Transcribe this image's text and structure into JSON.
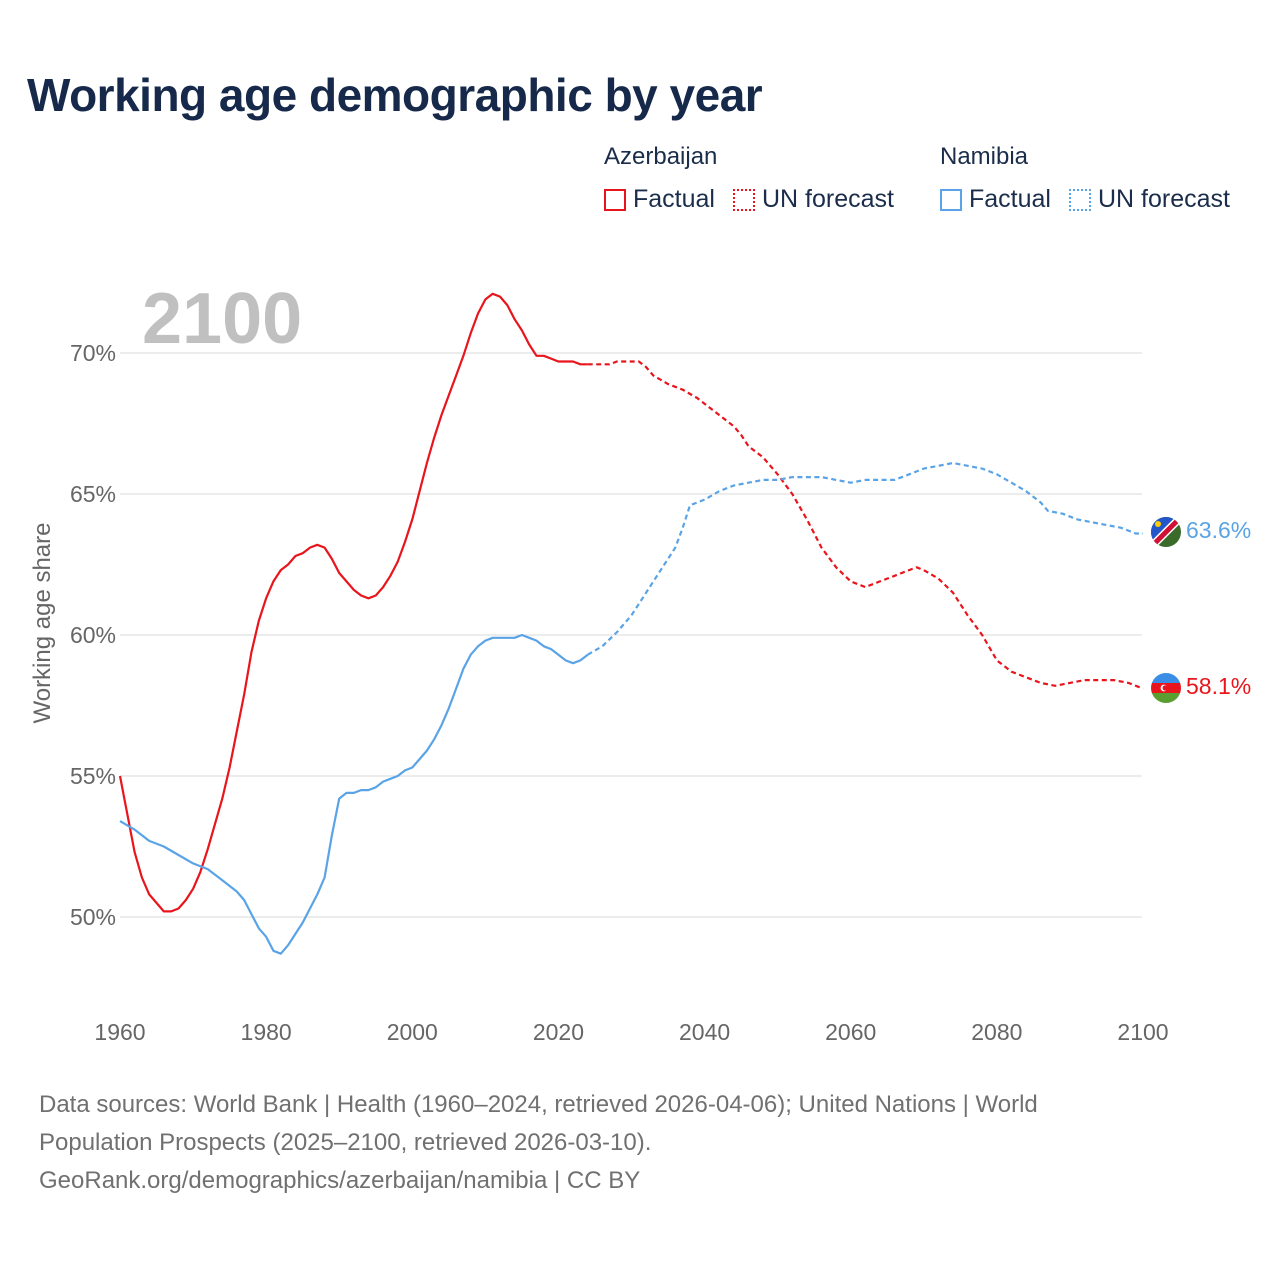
{
  "title": "Working age demographic by year",
  "legend": {
    "groups": [
      {
        "name": "Azerbaijan",
        "color": "#e8151c",
        "items": [
          {
            "label": "Factual",
            "style": "solid"
          },
          {
            "label": "UN forecast",
            "style": "dotted"
          }
        ]
      },
      {
        "name": "Namibia",
        "color": "#5aa3e6",
        "items": [
          {
            "label": "Factual",
            "style": "solid"
          },
          {
            "label": "UN forecast",
            "style": "dotted"
          }
        ]
      }
    ]
  },
  "sources": {
    "line1": "Data sources: World Bank | Health (1960–2024, retrieved 2026-04-06); United Nations | World",
    "line2": "Population Prospects (2025–2100, retrieved 2026-03-10).",
    "line3": "GeoRank.org/demographics/azerbaijan/namibia | CC BY"
  },
  "chart_data": {
    "type": "line",
    "title": "Working age demographic by year",
    "ylabel": "Working age share",
    "xlabel": "",
    "current_year_label": "2100",
    "xlim": [
      1960,
      2100
    ],
    "ylim": [
      47.5,
      72.5
    ],
    "x_ticks": [
      1960,
      1980,
      2000,
      2020,
      2040,
      2060,
      2080,
      2100
    ],
    "y_ticks": [
      50,
      55,
      60,
      65,
      70
    ],
    "y_tick_labels": [
      "50%",
      "55%",
      "60%",
      "65%",
      "70%"
    ],
    "grid": "horizontal",
    "factual_end_year": 2024,
    "series": [
      {
        "name": "Azerbaijan",
        "color": "#e8151c",
        "end_label": "58.1%",
        "points": [
          [
            1960,
            55.0
          ],
          [
            1962,
            52.3
          ],
          [
            1963,
            51.4
          ],
          [
            1964,
            50.8
          ],
          [
            1965,
            50.5
          ],
          [
            1966,
            50.2
          ],
          [
            1967,
            50.2
          ],
          [
            1968,
            50.3
          ],
          [
            1969,
            50.6
          ],
          [
            1970,
            51.0
          ],
          [
            1971,
            51.6
          ],
          [
            1972,
            52.4
          ],
          [
            1973,
            53.3
          ],
          [
            1974,
            54.2
          ],
          [
            1975,
            55.3
          ],
          [
            1976,
            56.6
          ],
          [
            1977,
            57.9
          ],
          [
            1978,
            59.4
          ],
          [
            1979,
            60.5
          ],
          [
            1980,
            61.3
          ],
          [
            1981,
            61.9
          ],
          [
            1982,
            62.3
          ],
          [
            1983,
            62.5
          ],
          [
            1984,
            62.8
          ],
          [
            1985,
            62.9
          ],
          [
            1986,
            63.1
          ],
          [
            1987,
            63.2
          ],
          [
            1988,
            63.1
          ],
          [
            1989,
            62.7
          ],
          [
            1990,
            62.2
          ],
          [
            1991,
            61.9
          ],
          [
            1992,
            61.6
          ],
          [
            1993,
            61.4
          ],
          [
            1994,
            61.3
          ],
          [
            1995,
            61.4
          ],
          [
            1996,
            61.7
          ],
          [
            1997,
            62.1
          ],
          [
            1998,
            62.6
          ],
          [
            1999,
            63.3
          ],
          [
            2000,
            64.1
          ],
          [
            2001,
            65.1
          ],
          [
            2002,
            66.1
          ],
          [
            2003,
            67.0
          ],
          [
            2004,
            67.8
          ],
          [
            2005,
            68.5
          ],
          [
            2006,
            69.2
          ],
          [
            2007,
            69.9
          ],
          [
            2008,
            70.7
          ],
          [
            2009,
            71.4
          ],
          [
            2010,
            71.9
          ],
          [
            2011,
            72.1
          ],
          [
            2012,
            72.0
          ],
          [
            2013,
            71.7
          ],
          [
            2014,
            71.2
          ],
          [
            2015,
            70.8
          ],
          [
            2016,
            70.3
          ],
          [
            2017,
            69.9
          ],
          [
            2018,
            69.9
          ],
          [
            2019,
            69.8
          ],
          [
            2020,
            69.7
          ],
          [
            2021,
            69.7
          ],
          [
            2022,
            69.7
          ],
          [
            2023,
            69.6
          ],
          [
            2024,
            69.6
          ],
          [
            2026,
            69.6
          ],
          [
            2027,
            69.6
          ],
          [
            2028,
            69.7
          ],
          [
            2030,
            69.7
          ],
          [
            2031,
            69.7
          ],
          [
            2032,
            69.5
          ],
          [
            2033,
            69.2
          ],
          [
            2035,
            68.9
          ],
          [
            2037,
            68.7
          ],
          [
            2039,
            68.4
          ],
          [
            2040,
            68.2
          ],
          [
            2042,
            67.8
          ],
          [
            2044,
            67.4
          ],
          [
            2045,
            67.1
          ],
          [
            2046,
            66.7
          ],
          [
            2048,
            66.3
          ],
          [
            2050,
            65.7
          ],
          [
            2052,
            65.0
          ],
          [
            2054,
            64.1
          ],
          [
            2056,
            63.1
          ],
          [
            2058,
            62.4
          ],
          [
            2060,
            61.9
          ],
          [
            2062,
            61.7
          ],
          [
            2064,
            61.9
          ],
          [
            2066,
            62.1
          ],
          [
            2068,
            62.3
          ],
          [
            2069,
            62.4
          ],
          [
            2070,
            62.3
          ],
          [
            2072,
            62.0
          ],
          [
            2074,
            61.5
          ],
          [
            2076,
            60.7
          ],
          [
            2078,
            60.0
          ],
          [
            2080,
            59.1
          ],
          [
            2082,
            58.7
          ],
          [
            2084,
            58.5
          ],
          [
            2086,
            58.3
          ],
          [
            2088,
            58.2
          ],
          [
            2090,
            58.3
          ],
          [
            2092,
            58.4
          ],
          [
            2094,
            58.4
          ],
          [
            2096,
            58.4
          ],
          [
            2098,
            58.3
          ],
          [
            2100,
            58.1
          ]
        ]
      },
      {
        "name": "Namibia",
        "color": "#5aa3e6",
        "end_label": "63.6%",
        "points": [
          [
            1960,
            53.4
          ],
          [
            1962,
            53.1
          ],
          [
            1964,
            52.7
          ],
          [
            1966,
            52.5
          ],
          [
            1968,
            52.2
          ],
          [
            1970,
            51.9
          ],
          [
            1972,
            51.7
          ],
          [
            1974,
            51.3
          ],
          [
            1976,
            50.9
          ],
          [
            1977,
            50.6
          ],
          [
            1978,
            50.1
          ],
          [
            1979,
            49.6
          ],
          [
            1980,
            49.3
          ],
          [
            1981,
            48.8
          ],
          [
            1982,
            48.7
          ],
          [
            1983,
            49.0
          ],
          [
            1984,
            49.4
          ],
          [
            1985,
            49.8
          ],
          [
            1986,
            50.3
          ],
          [
            1987,
            50.8
          ],
          [
            1988,
            51.4
          ],
          [
            1989,
            52.9
          ],
          [
            1990,
            54.2
          ],
          [
            1991,
            54.4
          ],
          [
            1992,
            54.4
          ],
          [
            1993,
            54.5
          ],
          [
            1994,
            54.5
          ],
          [
            1995,
            54.6
          ],
          [
            1996,
            54.8
          ],
          [
            1997,
            54.9
          ],
          [
            1998,
            55.0
          ],
          [
            1999,
            55.2
          ],
          [
            2000,
            55.3
          ],
          [
            2001,
            55.6
          ],
          [
            2002,
            55.9
          ],
          [
            2003,
            56.3
          ],
          [
            2004,
            56.8
          ],
          [
            2005,
            57.4
          ],
          [
            2006,
            58.1
          ],
          [
            2007,
            58.8
          ],
          [
            2008,
            59.3
          ],
          [
            2009,
            59.6
          ],
          [
            2010,
            59.8
          ],
          [
            2011,
            59.9
          ],
          [
            2012,
            59.9
          ],
          [
            2013,
            59.9
          ],
          [
            2014,
            59.9
          ],
          [
            2015,
            60.0
          ],
          [
            2016,
            59.9
          ],
          [
            2017,
            59.8
          ],
          [
            2018,
            59.6
          ],
          [
            2019,
            59.5
          ],
          [
            2020,
            59.3
          ],
          [
            2021,
            59.1
          ],
          [
            2022,
            59.0
          ],
          [
            2023,
            59.1
          ],
          [
            2024,
            59.3
          ],
          [
            2026,
            59.6
          ],
          [
            2028,
            60.1
          ],
          [
            2030,
            60.7
          ],
          [
            2032,
            61.5
          ],
          [
            2034,
            62.3
          ],
          [
            2036,
            63.1
          ],
          [
            2037,
            63.8
          ],
          [
            2038,
            64.6
          ],
          [
            2040,
            64.8
          ],
          [
            2042,
            65.1
          ],
          [
            2044,
            65.3
          ],
          [
            2046,
            65.4
          ],
          [
            2048,
            65.5
          ],
          [
            2050,
            65.5
          ],
          [
            2052,
            65.6
          ],
          [
            2054,
            65.6
          ],
          [
            2056,
            65.6
          ],
          [
            2058,
            65.5
          ],
          [
            2060,
            65.4
          ],
          [
            2062,
            65.5
          ],
          [
            2064,
            65.5
          ],
          [
            2066,
            65.5
          ],
          [
            2068,
            65.7
          ],
          [
            2070,
            65.9
          ],
          [
            2072,
            66.0
          ],
          [
            2074,
            66.1
          ],
          [
            2076,
            66.0
          ],
          [
            2078,
            65.9
          ],
          [
            2080,
            65.7
          ],
          [
            2082,
            65.4
          ],
          [
            2084,
            65.1
          ],
          [
            2086,
            64.7
          ],
          [
            2087,
            64.4
          ],
          [
            2089,
            64.3
          ],
          [
            2091,
            64.1
          ],
          [
            2093,
            64.0
          ],
          [
            2095,
            63.9
          ],
          [
            2097,
            63.8
          ],
          [
            2099,
            63.6
          ],
          [
            2100,
            63.6
          ]
        ]
      }
    ]
  }
}
